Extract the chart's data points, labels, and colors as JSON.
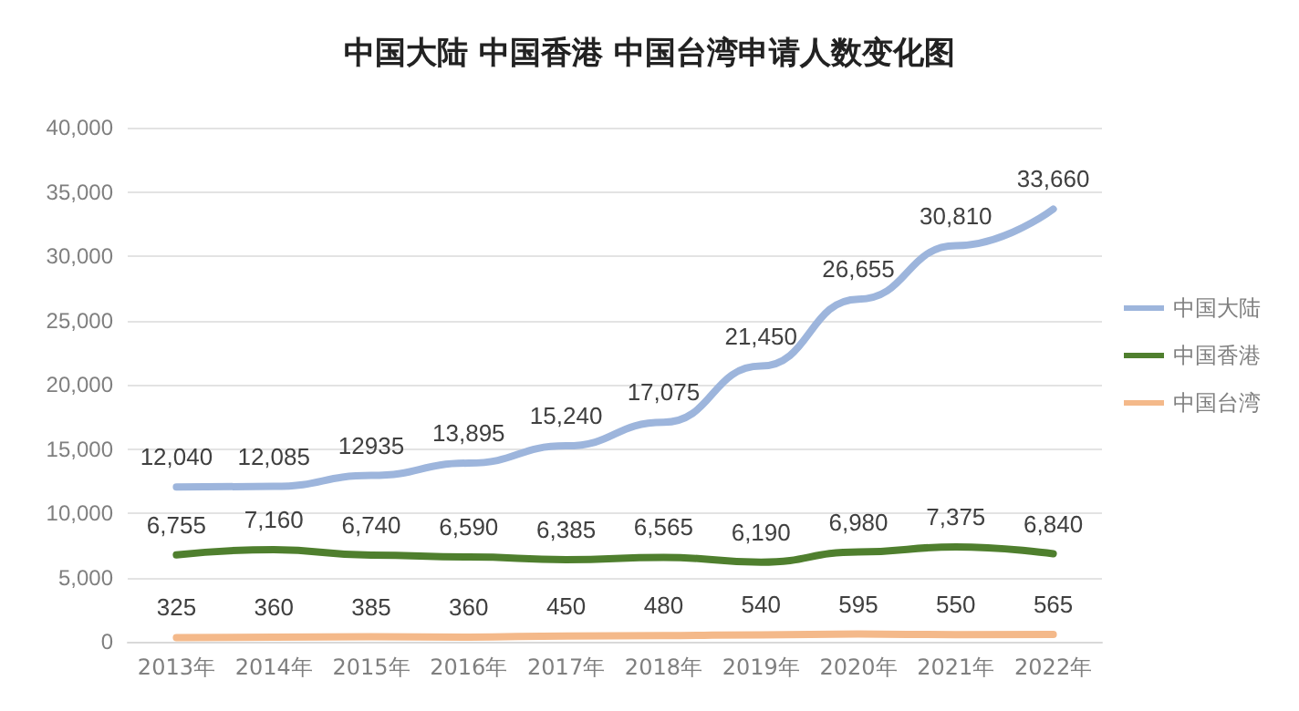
{
  "chart_data": {
    "type": "line",
    "title": "中国大陆 中国香港 中国台湾申请人数变化图",
    "categories": [
      "2013年",
      "2014年",
      "2015年",
      "2016年",
      "2017年",
      "2018年",
      "2019年",
      "2020年",
      "2021年",
      "2022年"
    ],
    "series": [
      {
        "name": "中国大陆",
        "color": "#9db5dc",
        "values": [
          12040,
          12085,
          12935,
          13895,
          15240,
          17075,
          21450,
          26655,
          30810,
          33660
        ],
        "value_labels": [
          "12,040",
          "12,085",
          "12935",
          "13,895",
          "15,240",
          "17,075",
          "21,450",
          "26,655",
          "30,810",
          "33,660"
        ]
      },
      {
        "name": "中国香港",
        "color": "#4f7f2e",
        "values": [
          6755,
          7160,
          6740,
          6590,
          6385,
          6565,
          6190,
          6980,
          7375,
          6840
        ],
        "value_labels": [
          "6,755",
          "7,160",
          "6,740",
          "6,590",
          "6,385",
          "6,565",
          "6,190",
          "6,980",
          "7,375",
          "6,840"
        ]
      },
      {
        "name": "中国台湾",
        "color": "#f4b98a",
        "values": [
          325,
          360,
          385,
          360,
          450,
          480,
          540,
          595,
          550,
          565
        ],
        "value_labels": [
          "325",
          "360",
          "385",
          "360",
          "450",
          "480",
          "540",
          "595",
          "550",
          "565"
        ]
      }
    ],
    "ylim": [
      0,
      40000
    ],
    "yticks": [
      0,
      {
        "value": 5000,
        "label": "5,000"
      },
      {
        "value": 10000,
        "label": "10,000"
      },
      {
        "value": 15000,
        "label": "15,000"
      },
      {
        "value": 20000,
        "label": "20,000"
      },
      {
        "value": 25000,
        "label": "25,000"
      },
      {
        "value": 30000,
        "label": "30,000"
      },
      {
        "value": 35000,
        "label": "35,000"
      },
      {
        "value": 40000,
        "label": "40,000"
      }
    ],
    "grid": "y",
    "legend": "right",
    "marker": "none"
  }
}
